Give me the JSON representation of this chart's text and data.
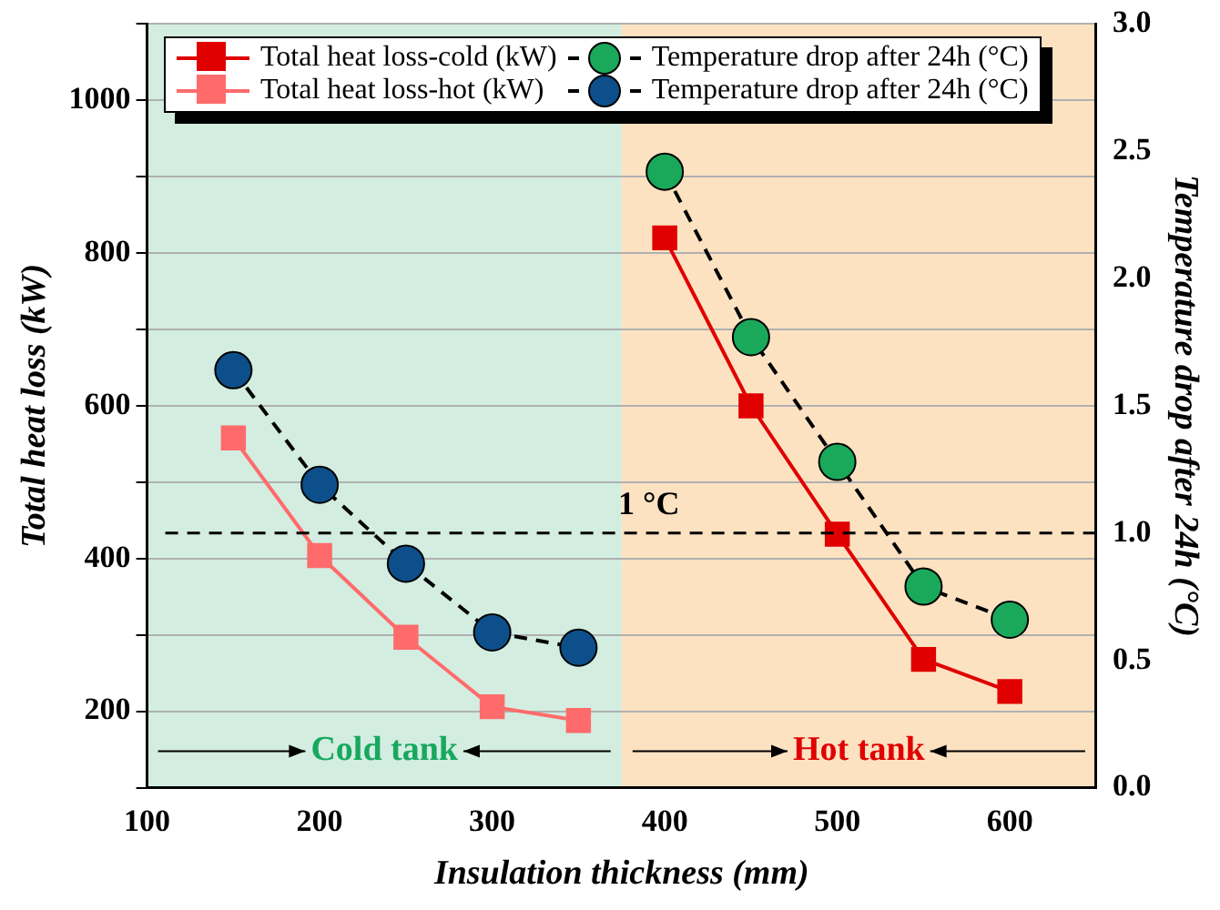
{
  "chart_data": {
    "type": "line",
    "xlabel": "Insulation thickness (mm)",
    "ylabel": "Total heat loss (kW)",
    "y2label": "Temperature drop after 24h (°C)",
    "xlim": [
      100,
      650
    ],
    "xticks": [
      100,
      200,
      300,
      400,
      500,
      600
    ],
    "ylim": [
      100,
      1100
    ],
    "yticks": [
      {
        "value": 100,
        "label": null
      },
      200,
      {
        "value": 300,
        "label": null
      },
      400,
      {
        "value": 500,
        "label": null
      },
      600,
      {
        "value": 700,
        "label": null
      },
      800,
      {
        "value": 900,
        "label": null
      },
      1000,
      {
        "value": 1100,
        "label": null
      }
    ],
    "y2lim": [
      0,
      3
    ],
    "y2ticks": [
      {
        "value": 0,
        "label": "0.0"
      },
      0.5,
      {
        "value": 1,
        "label": "1.0"
      },
      1.5,
      {
        "value": 2,
        "label": "2.0"
      },
      2.5,
      {
        "value": 3,
        "label": "3.0"
      }
    ],
    "grid": "y",
    "legend": "top",
    "marker": "square",
    "line_style": "solid",
    "series": [
      {
        "name": "Total heat loss-cold (kW)",
        "color": "#e00000",
        "x": [
          400,
          450,
          500,
          550,
          600
        ],
        "values": [
          820,
          600,
          432,
          268,
          226
        ]
      },
      {
        "name": "Total heat loss-hot (kW)",
        "color": "#ff6b6b",
        "x": [
          150,
          200,
          250,
          300,
          350
        ],
        "values": [
          558,
          404,
          297,
          206,
          188
        ]
      },
      {
        "name": "Temperature drop after 24h (°C)",
        "color": "#1aa85a",
        "axis": "y2",
        "marker": "circle",
        "line_style": "dashed",
        "x": [
          400,
          450,
          500,
          550,
          600
        ],
        "values": [
          2.42,
          1.77,
          1.28,
          0.79,
          0.66
        ]
      },
      {
        "name": "Temperature drop after 24h (°C)",
        "color": "#0d4f8b",
        "axis": "y2",
        "marker": "circle",
        "line_style": "dashed",
        "x": [
          150,
          200,
          250,
          300,
          350
        ],
        "values": [
          1.64,
          1.19,
          0.88,
          0.61,
          0.55
        ]
      }
    ],
    "ref_lines": [
      {
        "axis": "y2",
        "value": 1,
        "label": "1 °C",
        "color": "#000000",
        "line_style": "dashed"
      }
    ],
    "bands": [
      {
        "axis": "x",
        "from": 100,
        "to": 375,
        "label": "Cold tank",
        "color": "#d3ede1"
      },
      {
        "axis": "x",
        "from": 375,
        "to": 650,
        "label": "Hot tank",
        "color": "#fde2c2"
      }
    ]
  }
}
